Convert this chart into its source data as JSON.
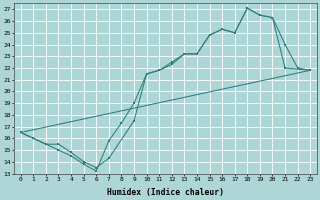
{
  "background_color": "#aed6d6",
  "grid_color": "#c8e8e8",
  "line_color": "#2e7d7d",
  "xlim": [
    -0.5,
    23.5
  ],
  "ylim": [
    13,
    27.5
  ],
  "yticks": [
    13,
    14,
    15,
    16,
    17,
    18,
    19,
    20,
    21,
    22,
    23,
    24,
    25,
    26,
    27
  ],
  "xticks": [
    0,
    1,
    2,
    3,
    4,
    5,
    6,
    7,
    8,
    9,
    10,
    11,
    12,
    13,
    14,
    15,
    16,
    17,
    18,
    19,
    20,
    21,
    22,
    23
  ],
  "xlabel": "Humidex (Indice chaleur)",
  "line1_x": [
    0,
    1,
    2,
    3,
    4,
    5,
    6,
    7,
    8,
    9,
    10,
    11,
    12,
    13,
    14,
    15,
    16,
    17,
    18,
    19,
    20,
    21,
    22,
    23
  ],
  "line1_y": [
    16.5,
    16.0,
    15.5,
    15.0,
    14.5,
    13.8,
    13.2,
    15.8,
    17.3,
    19.0,
    21.5,
    21.8,
    22.3,
    23.2,
    23.2,
    24.8,
    25.3,
    25.0,
    27.1,
    26.5,
    26.3,
    24.0,
    22.0,
    21.8
  ],
  "line2_x": [
    0,
    2,
    3,
    4,
    5,
    6,
    7,
    9,
    10,
    11,
    12,
    13,
    14,
    15,
    16,
    17,
    18,
    19,
    20,
    21,
    23
  ],
  "line2_y": [
    16.5,
    15.5,
    15.5,
    14.8,
    14.0,
    13.5,
    14.3,
    17.5,
    21.5,
    21.8,
    22.5,
    23.2,
    23.2,
    24.8,
    25.3,
    25.0,
    27.1,
    26.5,
    26.3,
    22.0,
    21.8
  ],
  "line3_x": [
    0,
    23
  ],
  "line3_y": [
    16.5,
    21.8
  ]
}
